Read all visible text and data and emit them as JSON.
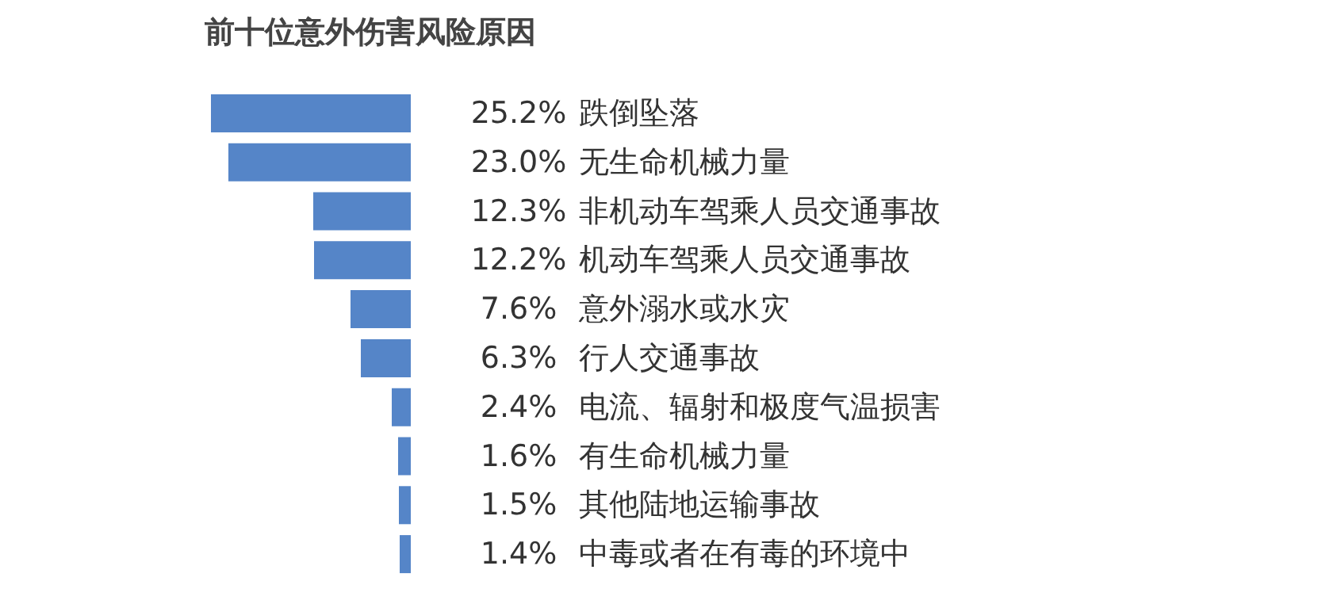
{
  "chart_data": {
    "type": "bar",
    "orientation": "horizontal",
    "title": "前十位意外伤害风险原因",
    "categories": [
      "跌倒坠落",
      "无生命机械力量",
      "非机动车驾乘人员交通事故",
      "机动车驾乘人员交通事故",
      "意外溺水或水灾",
      "行人交通事故",
      "电流、辐射和极度气温损害",
      "有生命机械力量",
      "其他陆地运输事故",
      "中毒或者在有毒的环境中"
    ],
    "values": [
      25.2,
      23.0,
      12.3,
      12.2,
      7.6,
      6.3,
      2.4,
      1.6,
      1.5,
      1.4
    ],
    "value_labels": [
      "25.2%",
      "23.0%",
      "12.3%",
      "12.2%",
      "7.6%",
      "6.3%",
      "2.4%",
      "1.6%",
      "1.5%",
      "1.4%"
    ],
    "color": "#5585c8",
    "xlim": [
      25.2,
      0
    ]
  }
}
